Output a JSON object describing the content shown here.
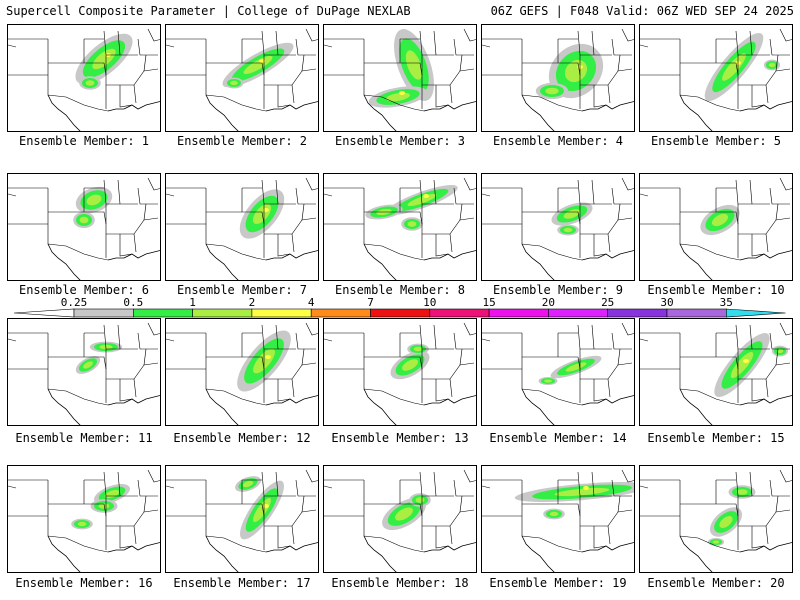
{
  "header": {
    "left": "Supercell Composite Parameter | College of DuPage NEXLAB",
    "right": "06Z GEFS | F048 Valid: 06Z WED SEP 24 2025"
  },
  "legend": {
    "ticks": [
      "0.25",
      "0.5",
      "1",
      "2",
      "4",
      "7",
      "10",
      "15",
      "20",
      "25",
      "30",
      "35"
    ],
    "bins": [
      {
        "from": "0.25",
        "to": "0.5",
        "color": "#c8c8c8"
      },
      {
        "from": "0.5",
        "to": "1",
        "color": "#33ee44"
      },
      {
        "from": "1",
        "to": "2",
        "color": "#aaee44"
      },
      {
        "from": "2",
        "to": "4",
        "color": "#ffff44"
      },
      {
        "from": "4",
        "to": "7",
        "color": "#ff8c1a"
      },
      {
        "from": "7",
        "to": "10",
        "color": "#ee1111"
      },
      {
        "from": "10",
        "to": "15",
        "color": "#ee1177"
      },
      {
        "from": "15",
        "to": "20",
        "color": "#ee11ee"
      },
      {
        "from": "20",
        "to": "25",
        "color": "#dd22ff"
      },
      {
        "from": "25",
        "to": "30",
        "color": "#8833dd"
      },
      {
        "from": "30",
        "to": "35",
        "color": "#aa66dd"
      },
      {
        "from": "35",
        "to": "",
        "color": "#33ddee"
      }
    ],
    "low_end_color": "#ffffff"
  },
  "members": [
    {
      "caption": "Ensemble Member: 1"
    },
    {
      "caption": "Ensemble Member: 2"
    },
    {
      "caption": "Ensemble Member: 3"
    },
    {
      "caption": "Ensemble Member: 4"
    },
    {
      "caption": "Ensemble Member: 5"
    },
    {
      "caption": "Ensemble Member: 6"
    },
    {
      "caption": "Ensemble Member: 7"
    },
    {
      "caption": "Ensemble Member: 8"
    },
    {
      "caption": "Ensemble Member: 9"
    },
    {
      "caption": "Ensemble Member: 10"
    },
    {
      "caption": "Ensemble Member: 11"
    },
    {
      "caption": "Ensemble Member: 12"
    },
    {
      "caption": "Ensemble Member: 13"
    },
    {
      "caption": "Ensemble Member: 14"
    },
    {
      "caption": "Ensemble Member: 15"
    },
    {
      "caption": "Ensemble Member: 16"
    },
    {
      "caption": "Ensemble Member: 17"
    },
    {
      "caption": "Ensemble Member: 18"
    },
    {
      "caption": "Ensemble Member: 19"
    },
    {
      "caption": "Ensemble Member: 20"
    }
  ]
}
